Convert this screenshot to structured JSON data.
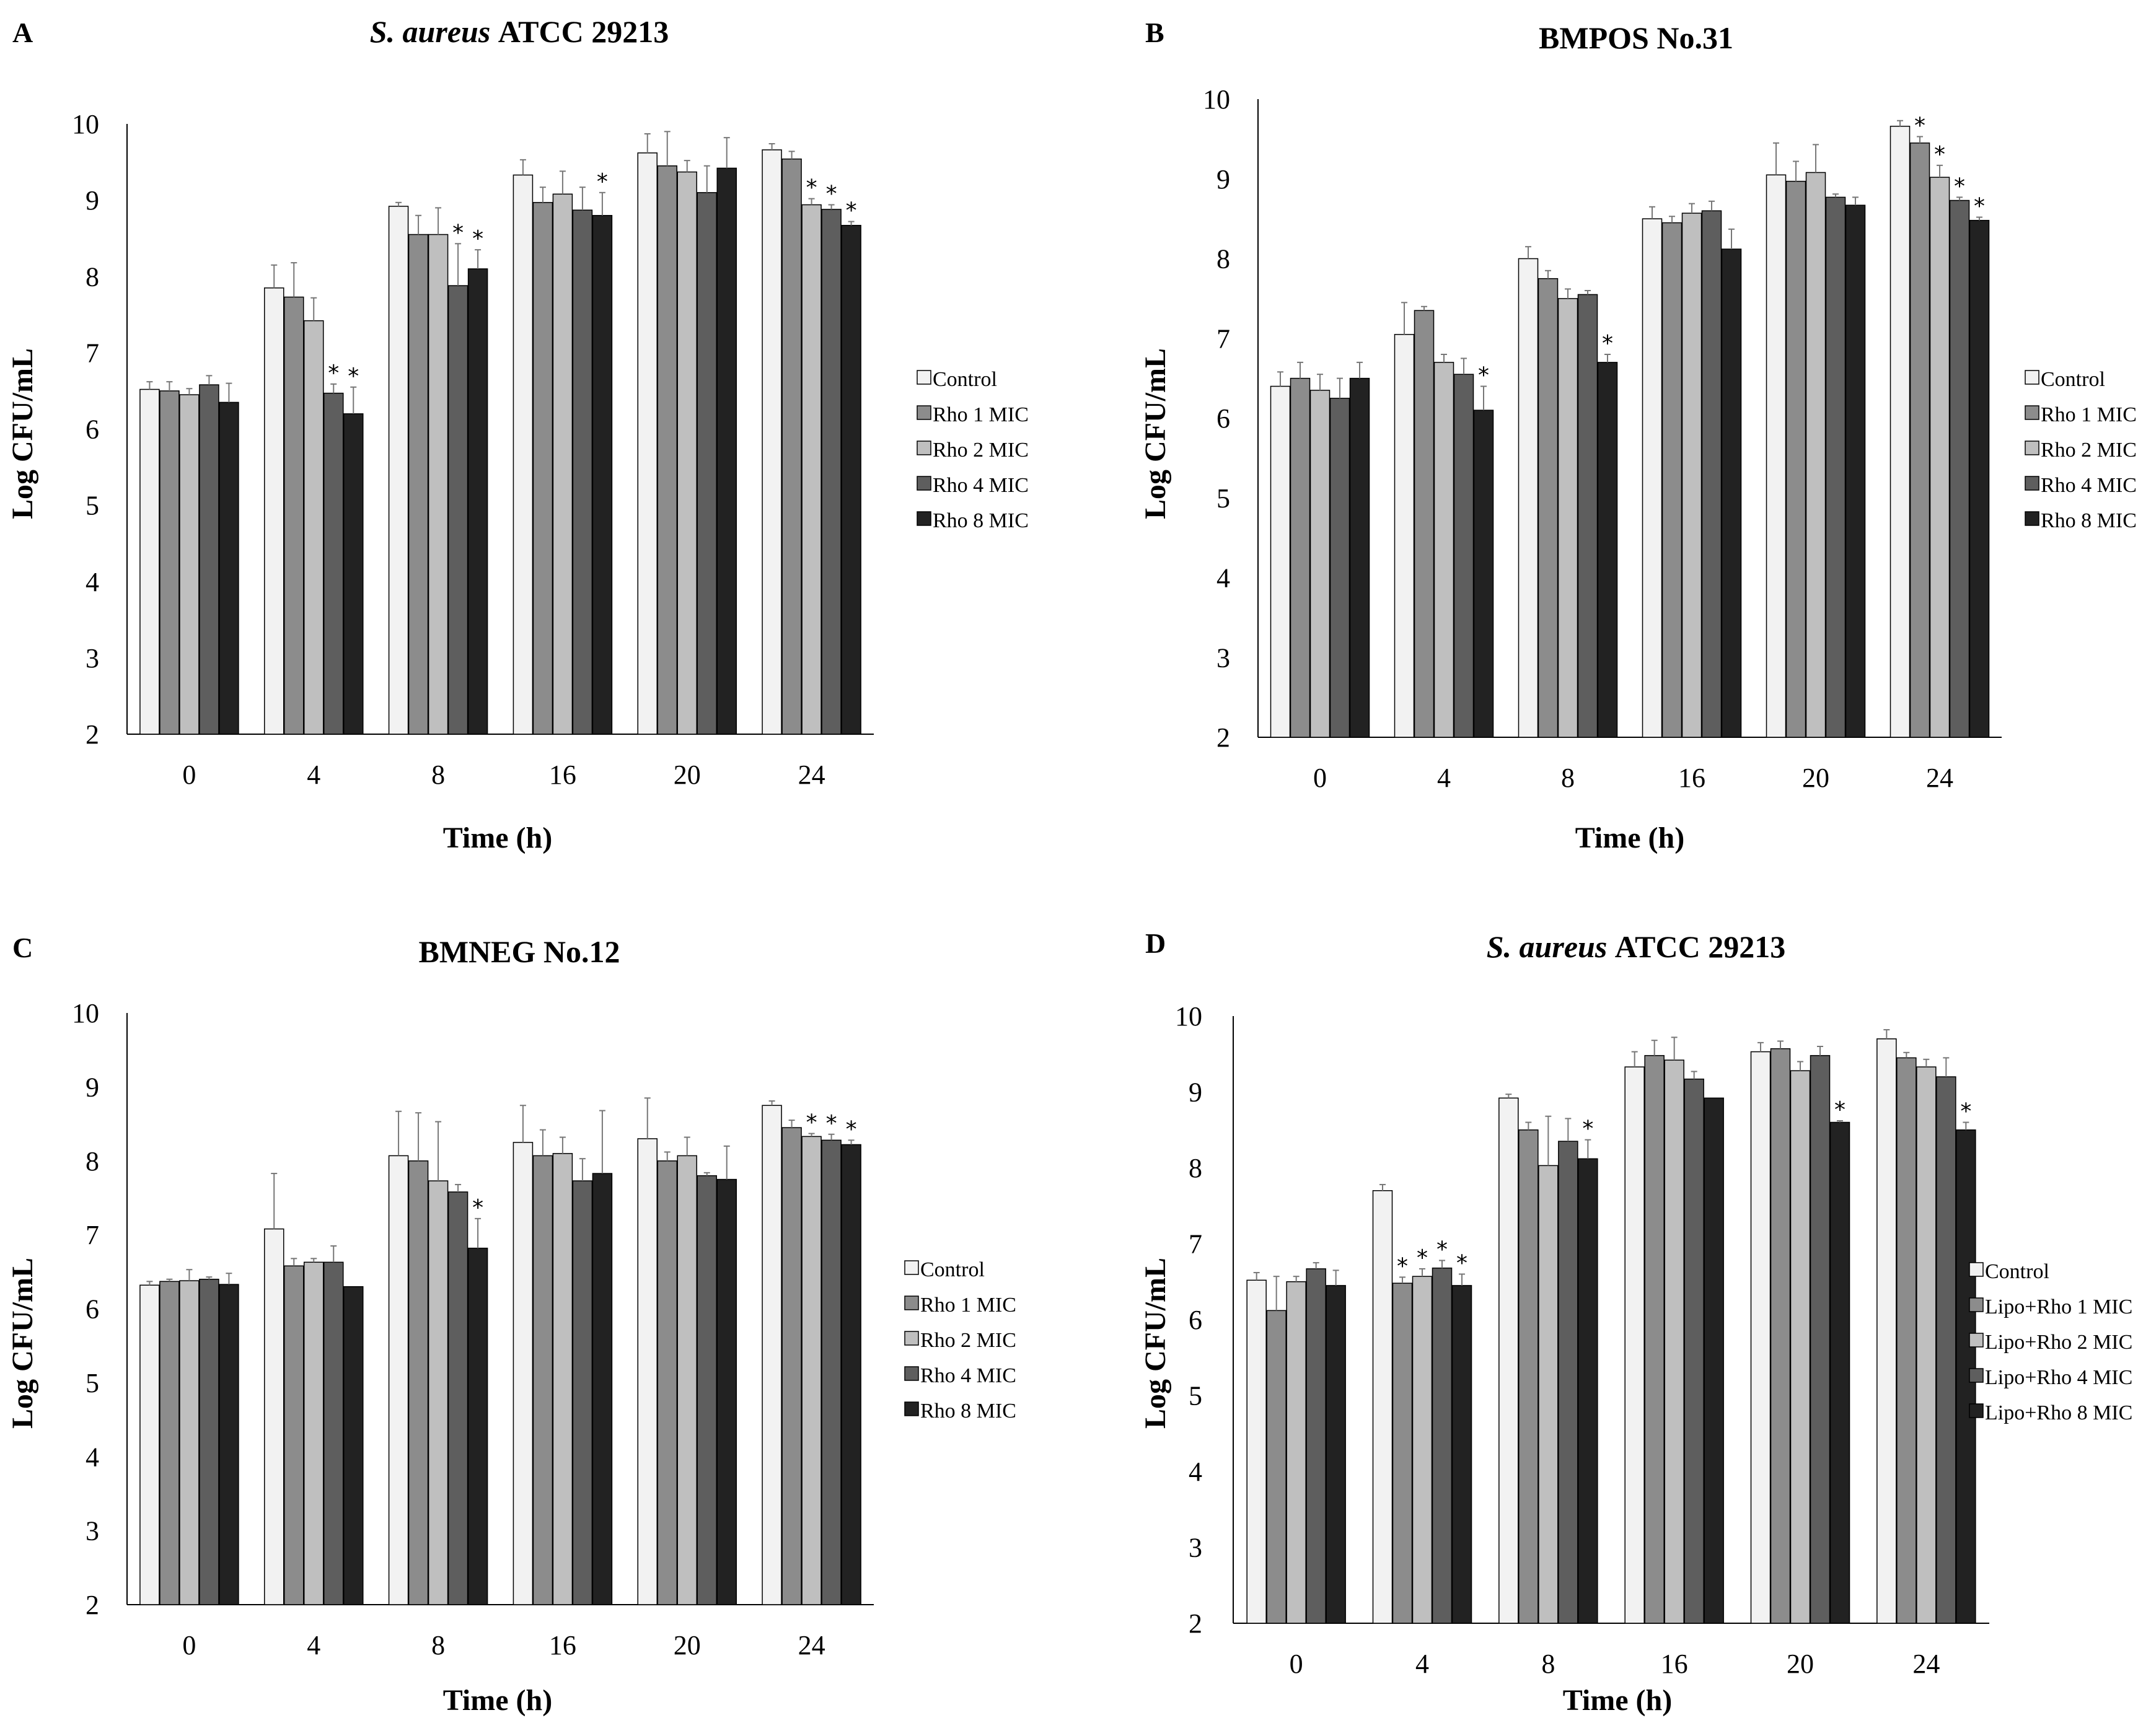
{
  "colors": {
    "series": [
      "#f2f2f2",
      "#8c8c8c",
      "#bfbfbf",
      "#5e5e5e",
      "#222222"
    ],
    "stroke": "#000000",
    "error_bar": "#777777"
  },
  "chart_data": [
    {
      "type": "bar",
      "panel_letter": "A",
      "title": {
        "italic": "S. aureus",
        "rest": " ATCC 29213"
      },
      "xlabel": "Time (h)",
      "ylabel": "Log CFU/mL",
      "ylim": [
        2,
        10
      ],
      "yticks": [
        "2",
        "3",
        "4",
        "5",
        "6",
        "7",
        "8",
        "9",
        "10"
      ],
      "categories": [
        "0",
        "4",
        "8",
        "16",
        "20",
        "24"
      ],
      "legend_position": "right",
      "series": [
        {
          "name": "Control",
          "values": [
            6.52,
            7.85,
            8.92,
            9.33,
            9.62,
            9.66
          ],
          "errors": [
            0.1,
            0.3,
            0.05,
            0.2,
            0.25,
            0.08
          ],
          "sig": [
            false,
            false,
            false,
            false,
            false,
            false
          ]
        },
        {
          "name": "Rho 1 MIC",
          "values": [
            6.5,
            7.73,
            8.55,
            8.97,
            9.45,
            9.54
          ],
          "errors": [
            0.12,
            0.45,
            0.25,
            0.2,
            0.45,
            0.1
          ],
          "sig": [
            false,
            false,
            false,
            false,
            false,
            false
          ]
        },
        {
          "name": "Rho 2 MIC",
          "values": [
            6.45,
            7.42,
            8.55,
            9.08,
            9.37,
            8.94
          ],
          "errors": [
            0.08,
            0.3,
            0.35,
            0.3,
            0.15,
            0.08
          ],
          "sig": [
            false,
            false,
            false,
            false,
            false,
            true
          ]
        },
        {
          "name": "Rho 4 MIC",
          "values": [
            6.58,
            6.47,
            7.88,
            8.87,
            9.1,
            8.88
          ],
          "errors": [
            0.12,
            0.12,
            0.55,
            0.3,
            0.35,
            0.06
          ],
          "sig": [
            false,
            true,
            true,
            false,
            false,
            true
          ]
        },
        {
          "name": "Rho 8 MIC",
          "values": [
            6.35,
            6.2,
            8.1,
            8.8,
            9.42,
            8.67
          ],
          "errors": [
            0.25,
            0.35,
            0.25,
            0.3,
            0.4,
            0.05
          ],
          "sig": [
            false,
            true,
            true,
            true,
            false,
            true
          ]
        }
      ]
    },
    {
      "type": "bar",
      "panel_letter": "B",
      "title": {
        "italic": "",
        "rest": "BMPOS No.31"
      },
      "xlabel": "Time (h)",
      "ylabel": "Log CFU/mL",
      "ylim": [
        2,
        10
      ],
      "yticks": [
        "2",
        "3",
        "4",
        "5",
        "6",
        "7",
        "8",
        "9",
        "10"
      ],
      "categories": [
        "0",
        "4",
        "8",
        "16",
        "20",
        "24"
      ],
      "legend_position": "right",
      "series": [
        {
          "name": "Control",
          "values": [
            6.4,
            7.05,
            8.0,
            8.5,
            9.05,
            9.66
          ],
          "errors": [
            0.18,
            0.4,
            0.15,
            0.15,
            0.4,
            0.07
          ],
          "sig": [
            false,
            false,
            false,
            false,
            false,
            false
          ]
        },
        {
          "name": "Rho 1 MIC",
          "values": [
            6.5,
            7.35,
            7.75,
            8.45,
            8.97,
            9.45
          ],
          "errors": [
            0.2,
            0.05,
            0.1,
            0.08,
            0.25,
            0.08
          ],
          "sig": [
            false,
            false,
            false,
            false,
            false,
            true
          ]
        },
        {
          "name": "Rho 2 MIC",
          "values": [
            6.35,
            6.7,
            7.5,
            8.57,
            9.08,
            9.02
          ],
          "errors": [
            0.2,
            0.1,
            0.12,
            0.12,
            0.35,
            0.15
          ],
          "sig": [
            false,
            false,
            false,
            false,
            false,
            true
          ]
        },
        {
          "name": "Rho 4 MIC",
          "values": [
            6.25,
            6.55,
            7.55,
            8.6,
            8.77,
            8.73
          ],
          "errors": [
            0.25,
            0.2,
            0.05,
            0.12,
            0.04,
            0.04
          ],
          "sig": [
            false,
            false,
            false,
            false,
            false,
            true
          ]
        },
        {
          "name": "Rho 8 MIC",
          "values": [
            6.5,
            6.1,
            6.7,
            8.12,
            8.67,
            8.48
          ],
          "errors": [
            0.2,
            0.3,
            0.1,
            0.25,
            0.1,
            0.04
          ],
          "sig": [
            false,
            true,
            true,
            false,
            false,
            true
          ]
        }
      ]
    },
    {
      "type": "bar",
      "panel_letter": "C",
      "title": {
        "italic": "",
        "rest": "BMNEG No.12"
      },
      "xlabel": "Time (h)",
      "ylabel": "Log CFU/mL",
      "ylim": [
        2,
        10
      ],
      "yticks": [
        "2",
        "3",
        "4",
        "5",
        "6",
        "7",
        "8",
        "9",
        "10"
      ],
      "categories": [
        "0",
        "4",
        "8",
        "16",
        "20",
        "24"
      ],
      "legend_position": "right",
      "series": [
        {
          "name": "Control",
          "values": [
            6.32,
            7.08,
            8.07,
            8.25,
            8.3,
            8.75
          ],
          "errors": [
            0.05,
            0.75,
            0.6,
            0.5,
            0.55,
            0.06
          ],
          "sig": [
            false,
            false,
            false,
            false,
            false,
            false
          ]
        },
        {
          "name": "Rho 1 MIC",
          "values": [
            6.37,
            6.58,
            8.0,
            8.07,
            8.0,
            8.45
          ],
          "errors": [
            0.03,
            0.1,
            0.65,
            0.35,
            0.12,
            0.1
          ],
          "sig": [
            false,
            false,
            false,
            false,
            false,
            false
          ]
        },
        {
          "name": "Rho 2 MIC",
          "values": [
            6.38,
            6.63,
            7.73,
            8.1,
            8.07,
            8.33
          ],
          "errors": [
            0.15,
            0.05,
            0.8,
            0.22,
            0.25,
            0.04
          ],
          "sig": [
            false,
            false,
            false,
            false,
            false,
            true
          ]
        },
        {
          "name": "Rho 4 MIC",
          "values": [
            6.4,
            6.63,
            7.58,
            7.73,
            7.8,
            8.28
          ],
          "errors": [
            0.03,
            0.22,
            0.1,
            0.3,
            0.04,
            0.08
          ],
          "sig": [
            false,
            false,
            false,
            false,
            false,
            true
          ]
        },
        {
          "name": "Rho 8 MIC",
          "values": [
            6.33,
            6.3,
            6.82,
            7.83,
            7.75,
            8.22
          ],
          "errors": [
            0.15,
            0.0,
            0.4,
            0.85,
            0.45,
            0.06
          ],
          "sig": [
            false,
            false,
            true,
            false,
            false,
            true
          ]
        }
      ]
    },
    {
      "type": "bar",
      "panel_letter": "D",
      "title": {
        "italic": "S. aureus",
        "rest": " ATCC 29213"
      },
      "xlabel": "Time (h)",
      "ylabel": "Log CFU/mL",
      "ylim": [
        2,
        10
      ],
      "yticks": [
        "2",
        "3",
        "4",
        "5",
        "6",
        "7",
        "8",
        "9",
        "10"
      ],
      "categories": [
        "0",
        "4",
        "8",
        "16",
        "20",
        "24"
      ],
      "legend_position": "right",
      "series": [
        {
          "name": "Control",
          "values": [
            6.52,
            7.7,
            8.92,
            9.33,
            9.53,
            9.7
          ],
          "errors": [
            0.1,
            0.08,
            0.05,
            0.2,
            0.12,
            0.12
          ],
          "sig": [
            false,
            false,
            false,
            false,
            false,
            false
          ]
        },
        {
          "name": "Lipo+Rho 1 MIC",
          "values": [
            6.12,
            6.48,
            8.5,
            9.48,
            9.57,
            9.45
          ],
          "errors": [
            0.45,
            0.08,
            0.1,
            0.2,
            0.1,
            0.07
          ],
          "sig": [
            false,
            true,
            false,
            false,
            false,
            false
          ]
        },
        {
          "name": "Lipo+Rho 2 MIC",
          "values": [
            6.5,
            6.57,
            8.03,
            9.42,
            9.28,
            9.33
          ],
          "errors": [
            0.07,
            0.1,
            0.65,
            0.3,
            0.12,
            0.1
          ],
          "sig": [
            false,
            true,
            false,
            false,
            false,
            false
          ]
        },
        {
          "name": "Lipo+Rho 4 MIC",
          "values": [
            6.67,
            6.68,
            8.35,
            9.17,
            9.48,
            9.2
          ],
          "errors": [
            0.08,
            0.1,
            0.3,
            0.1,
            0.12,
            0.25
          ],
          "sig": [
            false,
            true,
            false,
            false,
            false,
            false
          ]
        },
        {
          "name": "Lipo+Rho 8 MIC",
          "values": [
            6.45,
            6.45,
            8.12,
            8.92,
            8.6,
            8.5
          ],
          "errors": [
            0.2,
            0.15,
            0.25,
            0.0,
            0.02,
            0.1
          ],
          "sig": [
            false,
            true,
            true,
            false,
            true,
            true
          ]
        }
      ]
    }
  ]
}
